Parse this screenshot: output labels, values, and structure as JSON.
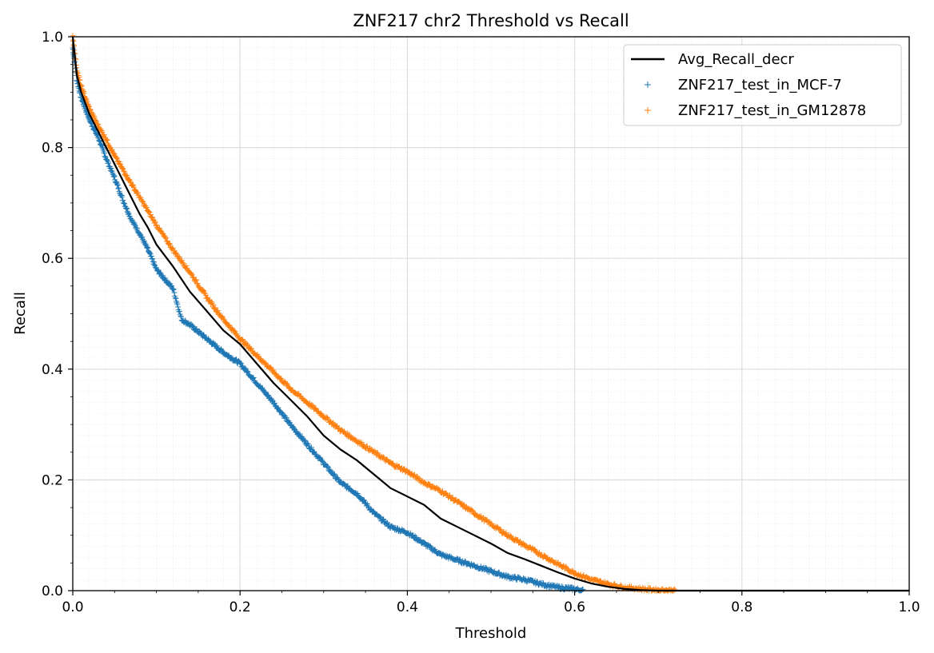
{
  "chart_data": {
    "type": "scatter",
    "title": "ZNF217 chr2 Threshold vs Recall",
    "xlabel": "Threshold",
    "ylabel": "Recall",
    "xlim": [
      0.0,
      1.0
    ],
    "ylim": [
      0.0,
      1.0
    ],
    "xticks": [
      "0.0",
      "0.2",
      "0.4",
      "0.6",
      "0.8",
      "1.0"
    ],
    "yticks": [
      "0.0",
      "0.2",
      "0.4",
      "0.6",
      "0.8",
      "1.0"
    ],
    "grid": true,
    "minor_grid": true,
    "legend_position": "top-right",
    "series": [
      {
        "name": "Avg_Recall_decr",
        "kind": "line",
        "color": "#000000",
        "x": [
          0.0,
          0.005,
          0.01,
          0.02,
          0.03,
          0.04,
          0.05,
          0.06,
          0.07,
          0.08,
          0.09,
          0.1,
          0.12,
          0.14,
          0.16,
          0.18,
          0.2,
          0.22,
          0.24,
          0.26,
          0.28,
          0.3,
          0.32,
          0.34,
          0.36,
          0.38,
          0.4,
          0.42,
          0.44,
          0.46,
          0.48,
          0.5,
          0.52,
          0.54,
          0.56,
          0.58,
          0.6,
          0.62,
          0.64,
          0.66,
          0.68,
          0.7,
          0.75,
          0.8,
          0.9,
          1.0
        ],
        "y": [
          1.0,
          0.93,
          0.9,
          0.86,
          0.83,
          0.8,
          0.77,
          0.74,
          0.71,
          0.68,
          0.655,
          0.625,
          0.585,
          0.54,
          0.505,
          0.47,
          0.445,
          0.41,
          0.375,
          0.345,
          0.315,
          0.28,
          0.255,
          0.235,
          0.21,
          0.185,
          0.17,
          0.155,
          0.13,
          0.115,
          0.1,
          0.085,
          0.068,
          0.057,
          0.045,
          0.033,
          0.022,
          0.013,
          0.007,
          0.003,
          0.001,
          0.0,
          0.0,
          0.0,
          0.0,
          0.0
        ]
      },
      {
        "name": "ZNF217_test_in_MCF-7",
        "kind": "scatter",
        "marker": "+",
        "color": "#1f77b4",
        "x": [
          0.0,
          0.005,
          0.01,
          0.02,
          0.03,
          0.04,
          0.05,
          0.06,
          0.07,
          0.08,
          0.09,
          0.1,
          0.12,
          0.13,
          0.14,
          0.16,
          0.18,
          0.2,
          0.22,
          0.24,
          0.26,
          0.28,
          0.3,
          0.32,
          0.34,
          0.36,
          0.38,
          0.4,
          0.42,
          0.44,
          0.46,
          0.48,
          0.5,
          0.52,
          0.54,
          0.56,
          0.58,
          0.6,
          0.61
        ],
        "y": [
          0.98,
          0.92,
          0.89,
          0.85,
          0.82,
          0.78,
          0.745,
          0.705,
          0.67,
          0.645,
          0.615,
          0.58,
          0.545,
          0.49,
          0.48,
          0.455,
          0.43,
          0.41,
          0.375,
          0.34,
          0.3,
          0.265,
          0.23,
          0.195,
          0.175,
          0.14,
          0.115,
          0.105,
          0.085,
          0.065,
          0.055,
          0.045,
          0.035,
          0.025,
          0.02,
          0.012,
          0.006,
          0.003,
          0.0
        ]
      },
      {
        "name": "ZNF217_test_in_GM12878",
        "kind": "scatter",
        "marker": "+",
        "color": "#ff7f0e",
        "x": [
          0.0,
          0.005,
          0.01,
          0.02,
          0.03,
          0.04,
          0.05,
          0.06,
          0.07,
          0.08,
          0.09,
          0.1,
          0.12,
          0.14,
          0.16,
          0.18,
          0.2,
          0.22,
          0.24,
          0.26,
          0.28,
          0.3,
          0.32,
          0.34,
          0.36,
          0.38,
          0.4,
          0.42,
          0.44,
          0.46,
          0.48,
          0.5,
          0.52,
          0.54,
          0.56,
          0.58,
          0.6,
          0.62,
          0.64,
          0.66,
          0.68,
          0.7,
          0.72
        ],
        "y": [
          1.0,
          0.94,
          0.91,
          0.87,
          0.84,
          0.815,
          0.785,
          0.76,
          0.735,
          0.71,
          0.685,
          0.66,
          0.615,
          0.575,
          0.53,
          0.49,
          0.455,
          0.425,
          0.395,
          0.365,
          0.34,
          0.315,
          0.29,
          0.27,
          0.25,
          0.23,
          0.215,
          0.195,
          0.18,
          0.16,
          0.14,
          0.12,
          0.1,
          0.082,
          0.065,
          0.048,
          0.032,
          0.02,
          0.012,
          0.006,
          0.003,
          0.001,
          0.0
        ]
      }
    ]
  }
}
